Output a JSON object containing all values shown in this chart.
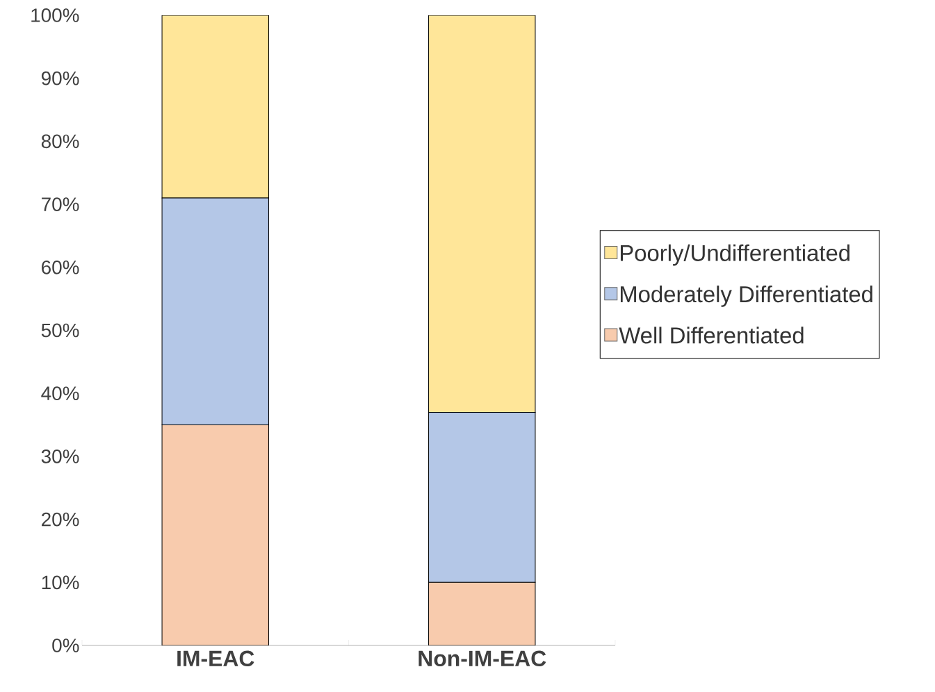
{
  "chart_data": {
    "type": "bar",
    "stacked": true,
    "categories": [
      "IM-EAC",
      "Non-IM-EAC"
    ],
    "series": [
      {
        "name": "Well Differentiated",
        "color": "#f8cbad",
        "values": [
          35,
          10
        ]
      },
      {
        "name": "Moderately Differentiated",
        "color": "#b4c7e7",
        "values": [
          36,
          27
        ]
      },
      {
        "name": "Poorly/Undifferentiated",
        "color": "#ffe699",
        "values": [
          29,
          63
        ]
      }
    ],
    "ylim": [
      0,
      100
    ],
    "yticks": [
      {
        "value": 0,
        "label": "0%"
      },
      {
        "value": 10,
        "label": "10%"
      },
      {
        "value": 20,
        "label": "20%"
      },
      {
        "value": 30,
        "label": "30%"
      },
      {
        "value": 40,
        "label": "40%"
      },
      {
        "value": 50,
        "label": "50%"
      },
      {
        "value": 60,
        "label": "60%"
      },
      {
        "value": 70,
        "label": "70%"
      },
      {
        "value": 80,
        "label": "80%"
      },
      {
        "value": 90,
        "label": "90%"
      },
      {
        "value": 100,
        "label": "100%"
      }
    ],
    "legend": "right",
    "grid": false
  }
}
